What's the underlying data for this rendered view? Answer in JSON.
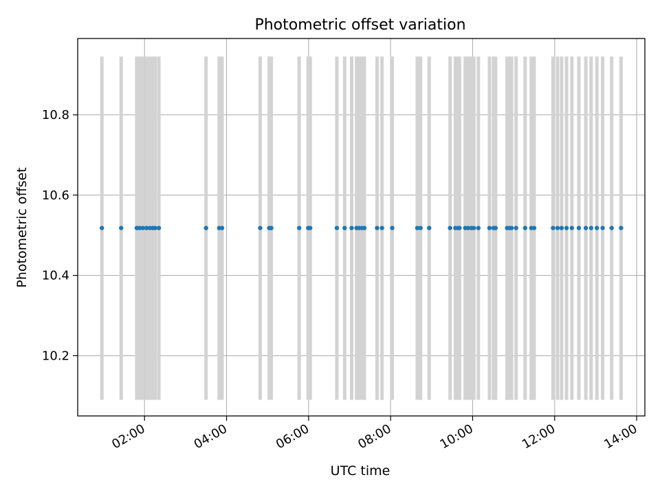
{
  "chart_data": {
    "type": "scatter",
    "title": "Photometric offset variation",
    "xlabel": "UTC time",
    "ylabel": "Photometric offset",
    "x_unit": "hours UTC",
    "xlim": [
      0.37,
      14.2
    ],
    "ylim": [
      10.05,
      10.99
    ],
    "x_ticks": [
      {
        "value": 2,
        "label": "02:00"
      },
      {
        "value": 4,
        "label": "04:00"
      },
      {
        "value": 6,
        "label": "06:00"
      },
      {
        "value": 8,
        "label": "08:00"
      },
      {
        "value": 10,
        "label": "10:00"
      },
      {
        "value": 12,
        "label": "12:00"
      },
      {
        "value": 14,
        "label": "14:00"
      }
    ],
    "y_ticks": [
      {
        "value": 10.2,
        "label": "10.2"
      },
      {
        "value": 10.4,
        "label": "10.4"
      },
      {
        "value": 10.6,
        "label": "10.6"
      },
      {
        "value": 10.8,
        "label": "10.8"
      }
    ],
    "grid": true,
    "point_color": "#1f77b4",
    "band_color": "#d3d3d3",
    "error_band": [
      10.09,
      10.945
    ],
    "series": [
      {
        "name": "offset",
        "x": [
          0.96,
          1.43,
          1.81,
          1.88,
          1.96,
          2.05,
          2.13,
          2.2,
          2.26,
          2.35,
          3.5,
          3.82,
          3.89,
          4.82,
          5.04,
          5.09,
          5.77,
          5.99,
          6.04,
          6.69,
          6.88,
          7.05,
          7.17,
          7.23,
          7.3,
          7.36,
          7.67,
          7.79,
          8.04,
          8.65,
          8.73,
          8.94,
          9.45,
          9.58,
          9.64,
          9.68,
          9.82,
          9.89,
          9.97,
          10.03,
          10.14,
          10.41,
          10.51,
          10.56,
          10.84,
          10.9,
          10.95,
          11.06,
          11.28,
          11.43,
          11.5,
          11.96,
          12.07,
          12.17,
          12.29,
          12.42,
          12.59,
          12.76,
          12.89,
          13.03,
          13.17,
          13.39,
          13.62
        ],
        "y": [
          10.518,
          10.518,
          10.518,
          10.518,
          10.518,
          10.518,
          10.518,
          10.518,
          10.518,
          10.518,
          10.518,
          10.518,
          10.518,
          10.518,
          10.518,
          10.518,
          10.518,
          10.518,
          10.518,
          10.518,
          10.518,
          10.518,
          10.518,
          10.518,
          10.518,
          10.518,
          10.518,
          10.518,
          10.518,
          10.518,
          10.518,
          10.518,
          10.518,
          10.518,
          10.518,
          10.518,
          10.518,
          10.518,
          10.518,
          10.518,
          10.518,
          10.518,
          10.518,
          10.518,
          10.518,
          10.518,
          10.518,
          10.518,
          10.518,
          10.518,
          10.518,
          10.518,
          10.518,
          10.518,
          10.518,
          10.518,
          10.518,
          10.518,
          10.518,
          10.518,
          10.518,
          10.518,
          10.518
        ]
      }
    ]
  }
}
